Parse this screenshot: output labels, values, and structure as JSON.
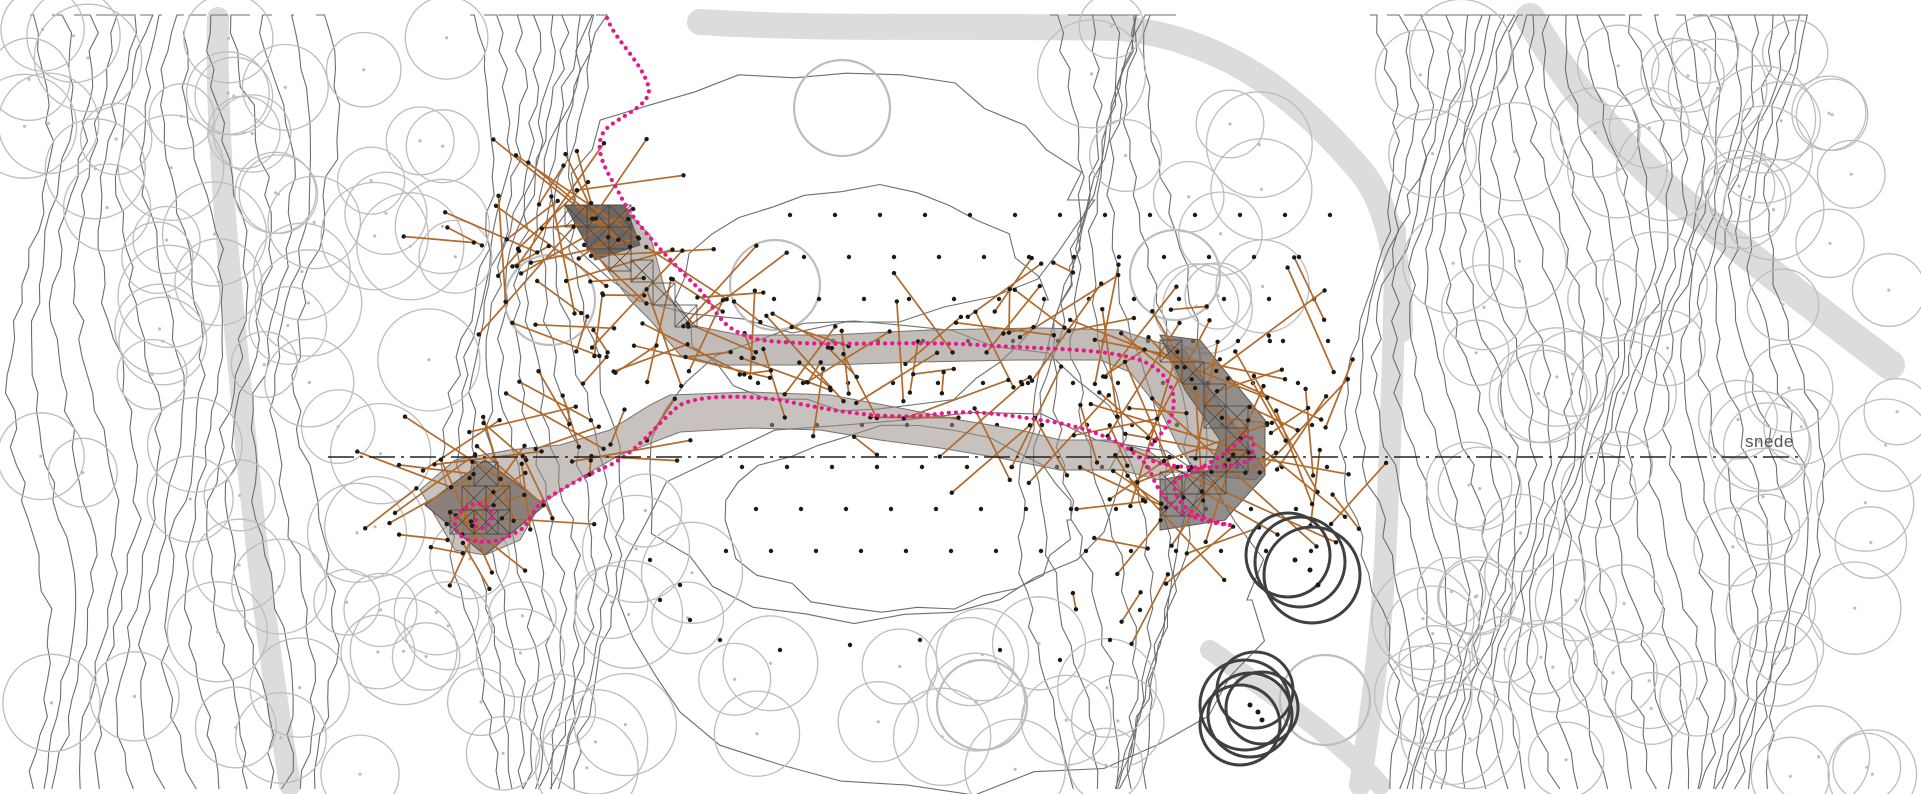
{
  "section_line": {
    "label": "snede"
  },
  "colors": {
    "background": "#ffffff",
    "contour": "#6e6e6e",
    "tree_canopy": "#bdbdbd",
    "road": "#dcdcdc",
    "walkway_fill": "#9a9089",
    "walkway_dark": "#6f6761",
    "structure_rods": "#b06a2c",
    "path_dotted": "#e6198a",
    "grid_points": "#1a1a1a",
    "highlight_trees": "#404040",
    "section_line": "#222222"
  },
  "icons": [
    "tree-canopy-icon",
    "grid-point-icon"
  ]
}
